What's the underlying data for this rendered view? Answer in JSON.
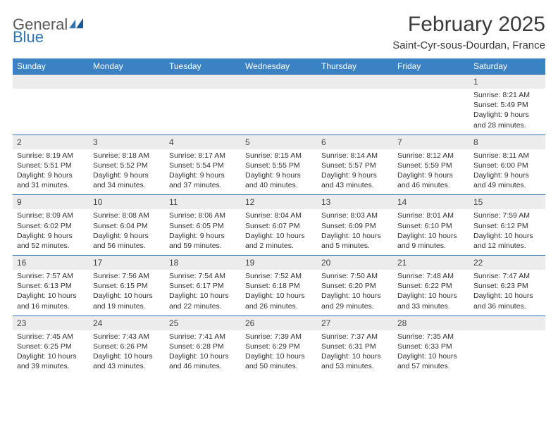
{
  "logo": {
    "word1": "General",
    "word2": "Blue"
  },
  "title": "February 2025",
  "subtitle": "Saint-Cyr-sous-Dourdan, France",
  "colors": {
    "header_bg": "#3b82c4",
    "header_text": "#ffffff",
    "daynum_bg": "#ececec",
    "row_border": "#2e74b5",
    "logo_gray": "#5a5a5a",
    "logo_blue": "#2e74b5"
  },
  "day_headers": [
    "Sunday",
    "Monday",
    "Tuesday",
    "Wednesday",
    "Thursday",
    "Friday",
    "Saturday"
  ],
  "weeks": [
    [
      null,
      null,
      null,
      null,
      null,
      null,
      {
        "d": "1",
        "sr": "8:21 AM",
        "ss": "5:49 PM",
        "dl": "9 hours and 28 minutes."
      }
    ],
    [
      {
        "d": "2",
        "sr": "8:19 AM",
        "ss": "5:51 PM",
        "dl": "9 hours and 31 minutes."
      },
      {
        "d": "3",
        "sr": "8:18 AM",
        "ss": "5:52 PM",
        "dl": "9 hours and 34 minutes."
      },
      {
        "d": "4",
        "sr": "8:17 AM",
        "ss": "5:54 PM",
        "dl": "9 hours and 37 minutes."
      },
      {
        "d": "5",
        "sr": "8:15 AM",
        "ss": "5:55 PM",
        "dl": "9 hours and 40 minutes."
      },
      {
        "d": "6",
        "sr": "8:14 AM",
        "ss": "5:57 PM",
        "dl": "9 hours and 43 minutes."
      },
      {
        "d": "7",
        "sr": "8:12 AM",
        "ss": "5:59 PM",
        "dl": "9 hours and 46 minutes."
      },
      {
        "d": "8",
        "sr": "8:11 AM",
        "ss": "6:00 PM",
        "dl": "9 hours and 49 minutes."
      }
    ],
    [
      {
        "d": "9",
        "sr": "8:09 AM",
        "ss": "6:02 PM",
        "dl": "9 hours and 52 minutes."
      },
      {
        "d": "10",
        "sr": "8:08 AM",
        "ss": "6:04 PM",
        "dl": "9 hours and 56 minutes."
      },
      {
        "d": "11",
        "sr": "8:06 AM",
        "ss": "6:05 PM",
        "dl": "9 hours and 59 minutes."
      },
      {
        "d": "12",
        "sr": "8:04 AM",
        "ss": "6:07 PM",
        "dl": "10 hours and 2 minutes."
      },
      {
        "d": "13",
        "sr": "8:03 AM",
        "ss": "6:09 PM",
        "dl": "10 hours and 5 minutes."
      },
      {
        "d": "14",
        "sr": "8:01 AM",
        "ss": "6:10 PM",
        "dl": "10 hours and 9 minutes."
      },
      {
        "d": "15",
        "sr": "7:59 AM",
        "ss": "6:12 PM",
        "dl": "10 hours and 12 minutes."
      }
    ],
    [
      {
        "d": "16",
        "sr": "7:57 AM",
        "ss": "6:13 PM",
        "dl": "10 hours and 16 minutes."
      },
      {
        "d": "17",
        "sr": "7:56 AM",
        "ss": "6:15 PM",
        "dl": "10 hours and 19 minutes."
      },
      {
        "d": "18",
        "sr": "7:54 AM",
        "ss": "6:17 PM",
        "dl": "10 hours and 22 minutes."
      },
      {
        "d": "19",
        "sr": "7:52 AM",
        "ss": "6:18 PM",
        "dl": "10 hours and 26 minutes."
      },
      {
        "d": "20",
        "sr": "7:50 AM",
        "ss": "6:20 PM",
        "dl": "10 hours and 29 minutes."
      },
      {
        "d": "21",
        "sr": "7:48 AM",
        "ss": "6:22 PM",
        "dl": "10 hours and 33 minutes."
      },
      {
        "d": "22",
        "sr": "7:47 AM",
        "ss": "6:23 PM",
        "dl": "10 hours and 36 minutes."
      }
    ],
    [
      {
        "d": "23",
        "sr": "7:45 AM",
        "ss": "6:25 PM",
        "dl": "10 hours and 39 minutes."
      },
      {
        "d": "24",
        "sr": "7:43 AM",
        "ss": "6:26 PM",
        "dl": "10 hours and 43 minutes."
      },
      {
        "d": "25",
        "sr": "7:41 AM",
        "ss": "6:28 PM",
        "dl": "10 hours and 46 minutes."
      },
      {
        "d": "26",
        "sr": "7:39 AM",
        "ss": "6:29 PM",
        "dl": "10 hours and 50 minutes."
      },
      {
        "d": "27",
        "sr": "7:37 AM",
        "ss": "6:31 PM",
        "dl": "10 hours and 53 minutes."
      },
      {
        "d": "28",
        "sr": "7:35 AM",
        "ss": "6:33 PM",
        "dl": "10 hours and 57 minutes."
      },
      null
    ]
  ],
  "labels": {
    "sunrise": "Sunrise:",
    "sunset": "Sunset:",
    "daylight": "Daylight:"
  }
}
